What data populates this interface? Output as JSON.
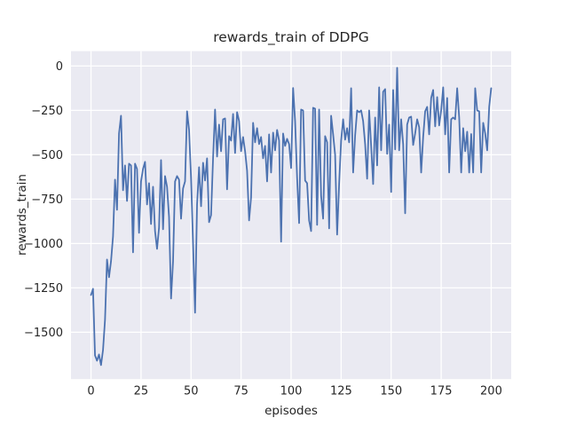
{
  "figure": {
    "title": "rewards_train of DDPG",
    "xlabel": "episodes",
    "ylabel": "rewards_train"
  },
  "style": {
    "figure_background": "#ffffff",
    "axes_background": "#eaeaf2",
    "grid_color": "#ffffff",
    "line_color": "#4c72b0",
    "text_color": "#262626"
  },
  "chart_data": {
    "type": "line",
    "title": "rewards_train of DDPG",
    "xlabel": "episodes",
    "ylabel": "rewards_train",
    "legend": null,
    "grid": true,
    "xlim": [
      -10,
      210
    ],
    "ylim": [
      -1764,
      84
    ],
    "x_ticks": [
      0,
      25,
      50,
      75,
      100,
      125,
      150,
      175,
      200
    ],
    "x_tick_labels": [
      "0",
      "25",
      "50",
      "75",
      "100",
      "125",
      "150",
      "175",
      "200"
    ],
    "y_ticks": [
      0,
      -250,
      -500,
      -750,
      -1000,
      -1250,
      -1500
    ],
    "y_tick_labels": [
      "0",
      "−250",
      "−500",
      "−750",
      "−1000",
      "−1250",
      "−1500"
    ],
    "series_name": "rewards_train of DDPG",
    "x": [
      0,
      1,
      2,
      3,
      4,
      5,
      6,
      7,
      8,
      9,
      10,
      11,
      12,
      13,
      14,
      15,
      16,
      17,
      18,
      19,
      20,
      21,
      22,
      23,
      24,
      25,
      26,
      27,
      28,
      29,
      30,
      31,
      32,
      33,
      34,
      35,
      36,
      37,
      38,
      39,
      40,
      41,
      42,
      43,
      44,
      45,
      46,
      47,
      48,
      49,
      50,
      51,
      52,
      53,
      54,
      55,
      56,
      57,
      58,
      59,
      60,
      61,
      62,
      63,
      64,
      65,
      66,
      67,
      68,
      69,
      70,
      71,
      72,
      73,
      74,
      75,
      76,
      77,
      78,
      79,
      80,
      81,
      82,
      83,
      84,
      85,
      86,
      87,
      88,
      89,
      90,
      91,
      92,
      93,
      94,
      95,
      96,
      97,
      98,
      99,
      100,
      101,
      102,
      103,
      104,
      105,
      106,
      107,
      108,
      109,
      110,
      111,
      112,
      113,
      114,
      115,
      116,
      117,
      118,
      119,
      120,
      121,
      122,
      123,
      124,
      125,
      126,
      127,
      128,
      129,
      130,
      131,
      132,
      133,
      134,
      135,
      136,
      137,
      138,
      139,
      140,
      141,
      142,
      143,
      144,
      145,
      146,
      147,
      148,
      149,
      150,
      151,
      152,
      153,
      154,
      155,
      156,
      157,
      158,
      159,
      160,
      161,
      162,
      163,
      164,
      165,
      166,
      167,
      168,
      169,
      170,
      171,
      172,
      173,
      174,
      175,
      176,
      177,
      178,
      179,
      180,
      181,
      182,
      183,
      184,
      185,
      186,
      187,
      188,
      189,
      190,
      191,
      192,
      193,
      194,
      195,
      196,
      197,
      198,
      199,
      200
    ],
    "values": [
      -1290,
      -1255,
      -1630,
      -1660,
      -1625,
      -1685,
      -1600,
      -1430,
      -1090,
      -1190,
      -1100,
      -960,
      -640,
      -810,
      -380,
      -280,
      -700,
      -560,
      -760,
      -550,
      -560,
      -1050,
      -550,
      -580,
      -940,
      -650,
      -580,
      -540,
      -780,
      -660,
      -890,
      -680,
      -930,
      -1030,
      -910,
      -530,
      -920,
      -620,
      -680,
      -850,
      -1310,
      -1100,
      -650,
      -620,
      -640,
      -860,
      -690,
      -650,
      -255,
      -360,
      -630,
      -1000,
      -1390,
      -780,
      -570,
      -790,
      -545,
      -645,
      -520,
      -880,
      -840,
      -520,
      -245,
      -510,
      -330,
      -480,
      -300,
      -295,
      -695,
      -395,
      -420,
      -270,
      -490,
      -260,
      -310,
      -480,
      -400,
      -480,
      -590,
      -870,
      -740,
      -320,
      -430,
      -350,
      -440,
      -400,
      -520,
      -450,
      -650,
      -385,
      -600,
      -375,
      -475,
      -360,
      -420,
      -990,
      -380,
      -450,
      -410,
      -440,
      -575,
      -124,
      -310,
      -630,
      -885,
      -245,
      -250,
      -645,
      -660,
      -870,
      -930,
      -235,
      -240,
      -895,
      -245,
      -730,
      -860,
      -395,
      -430,
      -915,
      -280,
      -385,
      -500,
      -950,
      -665,
      -420,
      -300,
      -415,
      -350,
      -430,
      -125,
      -600,
      -390,
      -250,
      -260,
      -250,
      -310,
      -440,
      -635,
      -250,
      -450,
      -665,
      -290,
      -560,
      -120,
      -475,
      -145,
      -130,
      -495,
      -330,
      -710,
      -135,
      -470,
      -10,
      -475,
      -300,
      -440,
      -830,
      -330,
      -290,
      -285,
      -445,
      -380,
      -300,
      -345,
      -600,
      -400,
      -255,
      -230,
      -385,
      -180,
      -135,
      -340,
      -175,
      -335,
      -250,
      -120,
      -385,
      -180,
      -600,
      -300,
      -290,
      -300,
      -125,
      -290,
      -600,
      -350,
      -480,
      -370,
      -600,
      -383,
      -600,
      -125,
      -250,
      -255,
      -600,
      -320,
      -380,
      -475,
      -230,
      -125
    ]
  }
}
